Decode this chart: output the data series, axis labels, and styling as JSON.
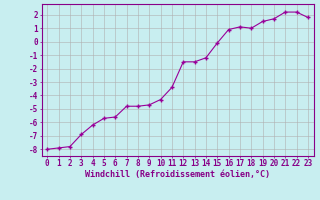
{
  "x": [
    0,
    1,
    2,
    3,
    4,
    5,
    6,
    7,
    8,
    9,
    10,
    11,
    12,
    13,
    14,
    15,
    16,
    17,
    18,
    19,
    20,
    21,
    22,
    23
  ],
  "y": [
    -8.0,
    -7.9,
    -7.8,
    -6.9,
    -6.2,
    -5.7,
    -5.6,
    -4.8,
    -4.8,
    -4.7,
    -4.3,
    -3.4,
    -1.5,
    -1.5,
    -1.2,
    -0.1,
    0.9,
    1.1,
    1.0,
    1.5,
    1.7,
    2.2,
    2.2,
    1.8
  ],
  "line_color": "#990099",
  "marker": "+",
  "bg_color": "#c8eef0",
  "grid_color": "#b0b0b0",
  "xlabel": "Windchill (Refroidissement éolien,°C)",
  "xlim": [
    -0.5,
    23.5
  ],
  "ylim": [
    -8.5,
    2.8
  ],
  "yticks": [
    -8,
    -7,
    -6,
    -5,
    -4,
    -3,
    -2,
    -1,
    0,
    1,
    2
  ],
  "xticks": [
    0,
    1,
    2,
    3,
    4,
    5,
    6,
    7,
    8,
    9,
    10,
    11,
    12,
    13,
    14,
    15,
    16,
    17,
    18,
    19,
    20,
    21,
    22,
    23
  ],
  "label_color": "#880088",
  "tick_color": "#880088",
  "spine_color": "#880088",
  "xlabel_fontsize": 6.0,
  "tick_fontsize": 5.5
}
